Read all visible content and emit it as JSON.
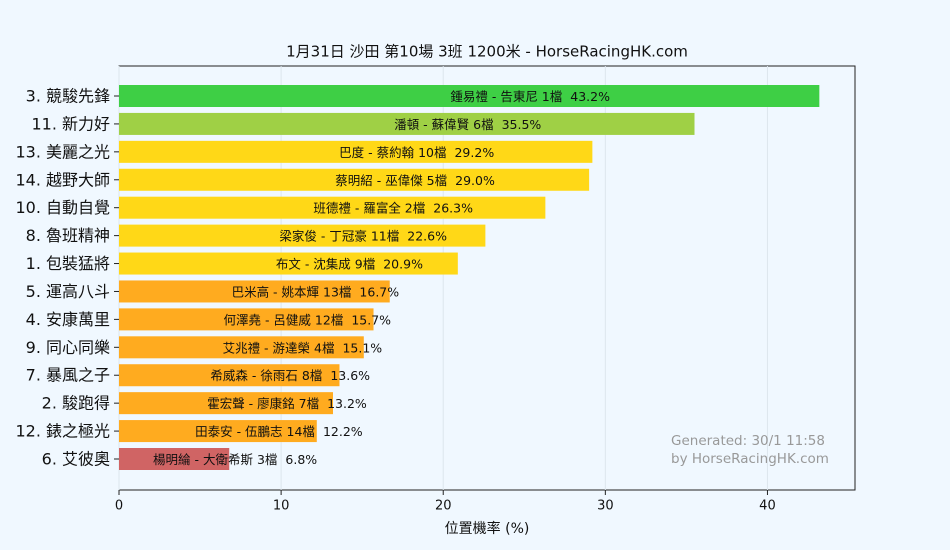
{
  "chart_data": {
    "type": "barh",
    "title": "1月31日  沙田  第10場  3班  1200米 - HorseRacingHK.com",
    "xlabel": "位置機率 (%)",
    "categories": [
      "3. 競駿先鋒",
      "11. 新力好",
      "13. 美麗之光",
      "14. 越野大師",
      "10. 自動自覺",
      "8. 魯班精神",
      "1. 包裝猛將",
      "5. 運高八斗",
      "4. 安康萬里",
      "9. 同心同樂",
      "7. 暴風之子",
      "2. 駿跑得",
      "12. 錶之極光",
      "6. 艾彼奧"
    ],
    "values": [
      43.2,
      35.5,
      29.2,
      29.0,
      26.3,
      22.6,
      20.9,
      16.7,
      15.7,
      15.1,
      13.6,
      13.2,
      12.2,
      6.8
    ],
    "value_labels": [
      "43.2%",
      "35.5%",
      "29.2%",
      "29.0%",
      "26.3%",
      "22.6%",
      "20.9%",
      "16.7%",
      "15.7%",
      "15.1%",
      "13.6%",
      "13.2%",
      "12.2%",
      "6.8%"
    ],
    "details": [
      "鍾易禮 - 告東尼 1檔",
      "潘頓 - 蘇偉賢 6檔",
      "巴度 - 蔡約翰 10檔",
      "蔡明紹 - 巫偉傑 5檔",
      "班德禮 - 羅富全 2檔",
      "梁家俊 - 丁冠豪 11檔",
      "布文 - 沈集成 9檔",
      "巴米高 - 姚本輝 13檔",
      "何澤堯 - 呂健威 12檔",
      "艾兆禮 - 游達榮 4檔",
      "希威森 - 徐雨石 8檔",
      "霍宏聲 - 廖康銘 7檔",
      "田泰安 - 伍鵬志 14檔",
      "楊明綸 - 大衛希斯 3檔"
    ],
    "colors": [
      "#3ecf45",
      "#9fd045",
      "#ffd817",
      "#ffd817",
      "#ffd817",
      "#ffd817",
      "#ffd817",
      "#ffab1f",
      "#ffab1f",
      "#ffab1f",
      "#ffab1f",
      "#ffab1f",
      "#ffab1f",
      "#d06464"
    ],
    "xlim": [
      0,
      45.4
    ],
    "xticks": [
      0,
      10,
      20,
      30,
      40
    ],
    "grid": true,
    "annotations": [
      "Generated: 30/1 11:58",
      "by HorseRacingHK.com"
    ]
  }
}
